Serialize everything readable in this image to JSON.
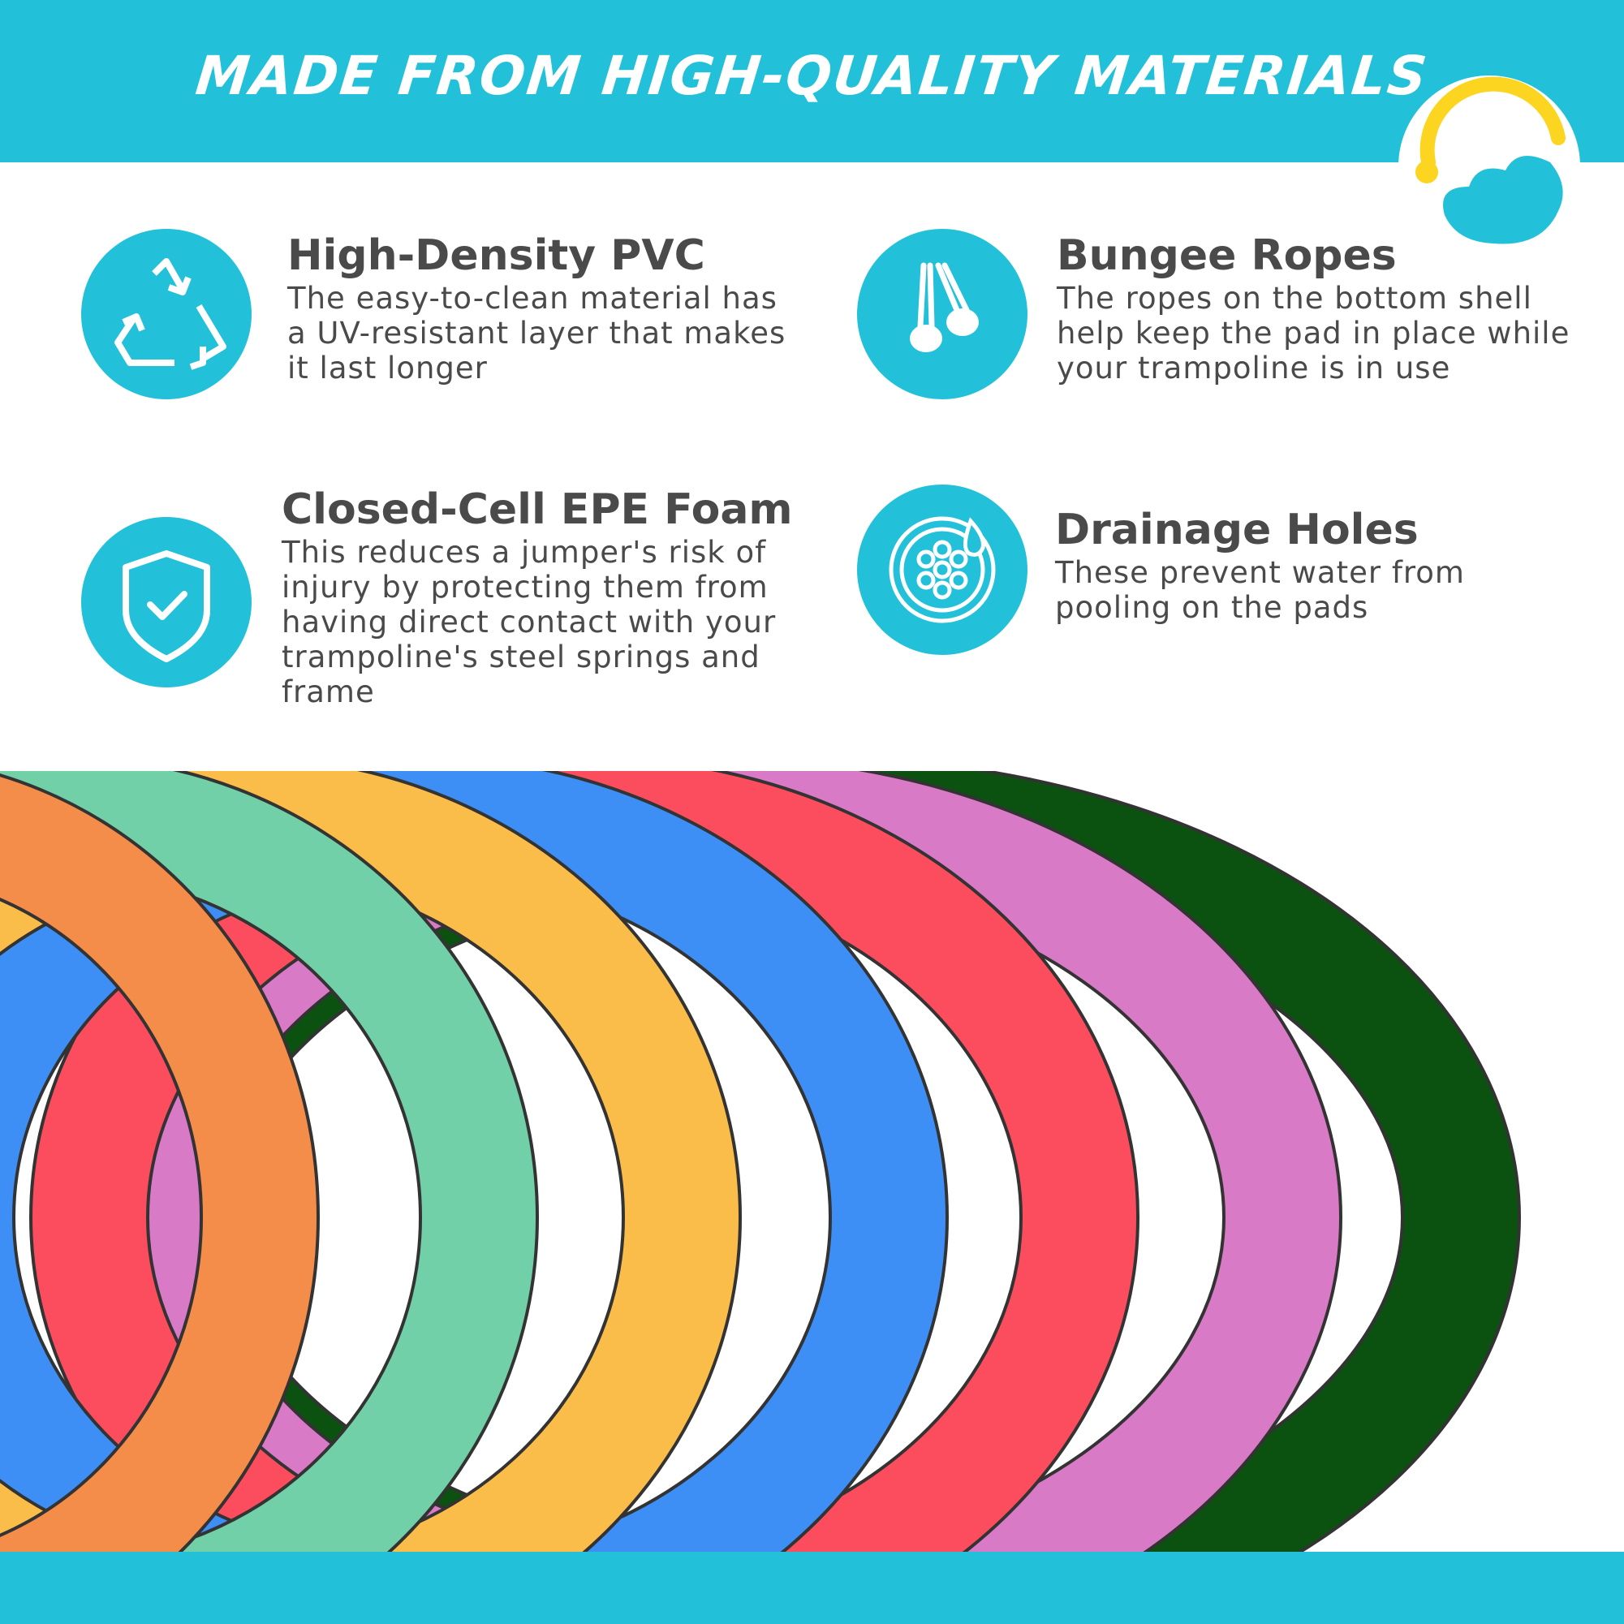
{
  "header": {
    "title": "MADE FROM HIGH-QUALITY MATERIALS"
  },
  "features": [
    {
      "icon": "recycle-icon",
      "title": "High-Density PVC",
      "text": "The easy-to-clean material has a UV-resistant layer that makes it last longer"
    },
    {
      "icon": "bungee-rope-icon",
      "title": "Bungee Ropes",
      "text": "The ropes on the bottom shell help keep the pad in place while your trampoline is in use"
    },
    {
      "icon": "shield-check-icon",
      "title": "Closed-Cell EPE Foam",
      "text": "This reduces a jumper's risk of injury by protecting them from having direct contact with your trampoline's steel springs and frame"
    },
    {
      "icon": "drainage-holes-icon",
      "title": "Drainage Holes",
      "text": "These prevent water from pooling on the pads"
    }
  ],
  "colors": {
    "accent": "#22c1d9",
    "logo_yellow": "#fcd520",
    "rings": [
      "#0b5211",
      "#d97ac7",
      "#fb4d5e",
      "#3d8ff5",
      "#fbbd49",
      "#72d0a8",
      "#f48c4a"
    ]
  }
}
